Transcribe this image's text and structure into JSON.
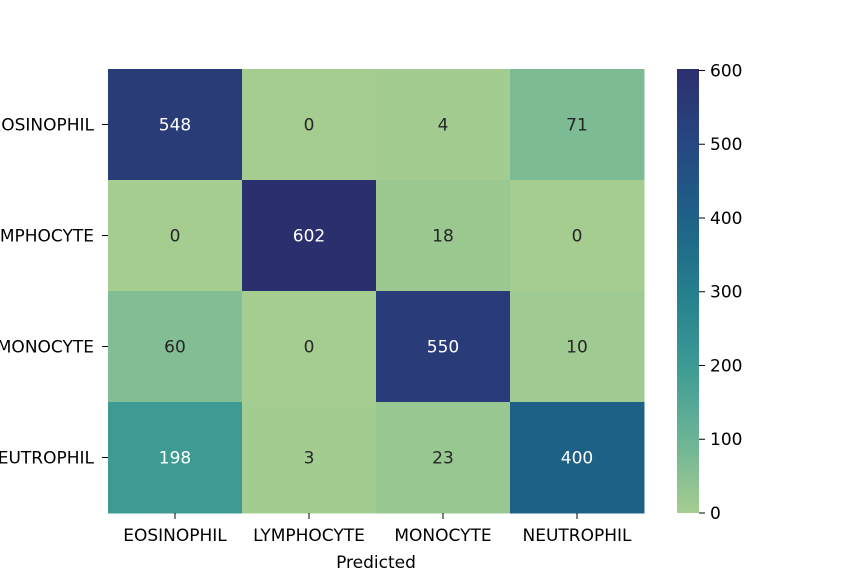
{
  "chart_data": {
    "type": "heatmap",
    "title": "",
    "xlabel": "Predicted",
    "ylabel": "",
    "x_categories": [
      "EOSINOPHIL",
      "LYMPHOCYTE",
      "MONOCYTE",
      "NEUTROPHIL"
    ],
    "y_categories": [
      "EOSINOPHIL",
      "LYMPHOCYTE",
      "MONOCYTE",
      "NEUTROPHIL"
    ],
    "values": [
      [
        548,
        0,
        4,
        71
      ],
      [
        0,
        602,
        18,
        0
      ],
      [
        60,
        0,
        550,
        10
      ],
      [
        198,
        3,
        23,
        400
      ]
    ],
    "colorbar": {
      "min": 0,
      "max": 602,
      "ticks": [
        0,
        100,
        200,
        300,
        400,
        500,
        600
      ],
      "colormap": "crest",
      "stops": [
        "#a5cd90",
        "#6bb396",
        "#3c9a94",
        "#257e8d",
        "#1e6187",
        "#264782",
        "#2c2f6d"
      ]
    }
  }
}
